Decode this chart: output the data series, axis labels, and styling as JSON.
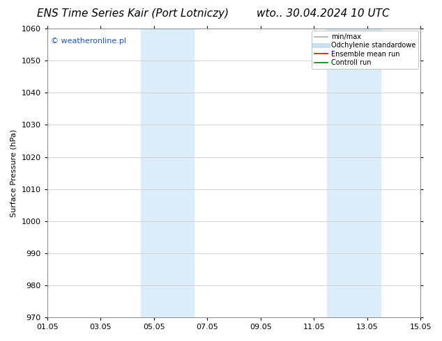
{
  "title_left": "ENS Time Series Kair (Port Lotniczy)",
  "title_right": "wto.. 30.04.2024 10 UTC",
  "ylabel": "Surface Pressure (hPa)",
  "ylim": [
    970,
    1060
  ],
  "yticks": [
    970,
    980,
    990,
    1000,
    1010,
    1020,
    1030,
    1040,
    1050,
    1060
  ],
  "xtick_labels": [
    "01.05",
    "03.05",
    "05.05",
    "07.05",
    "09.05",
    "11.05",
    "13.05",
    "15.05"
  ],
  "xtick_positions": [
    0,
    2,
    4,
    6,
    8,
    10,
    12,
    14
  ],
  "xlim": [
    0,
    14
  ],
  "shaded_bands": [
    {
      "xstart": 3.5,
      "xend": 4.5
    },
    {
      "xstart": 4.5,
      "xend": 5.5
    },
    {
      "xstart": 10.5,
      "xend": 11.5
    },
    {
      "xstart": 11.5,
      "xend": 12.5
    }
  ],
  "shaded_color": "#daedf8",
  "watermark_text": "© weatheronline.pl",
  "watermark_color": "#2255bb",
  "legend_entries": [
    {
      "label": "min/max",
      "color": "#aaaaaa",
      "lw": 1.2,
      "style": "solid"
    },
    {
      "label": "Odchylenie standardowe",
      "color": "#c8dff0",
      "lw": 5,
      "style": "solid"
    },
    {
      "label": "Ensemble mean run",
      "color": "red",
      "lw": 1.2,
      "style": "solid"
    },
    {
      "label": "Controll run",
      "color": "green",
      "lw": 1.2,
      "style": "solid"
    }
  ],
  "bg_color": "#ffffff",
  "grid_color": "#cccccc",
  "title_fontsize": 11,
  "axis_fontsize": 8,
  "tick_fontsize": 8,
  "watermark_fontsize": 8,
  "legend_fontsize": 7
}
